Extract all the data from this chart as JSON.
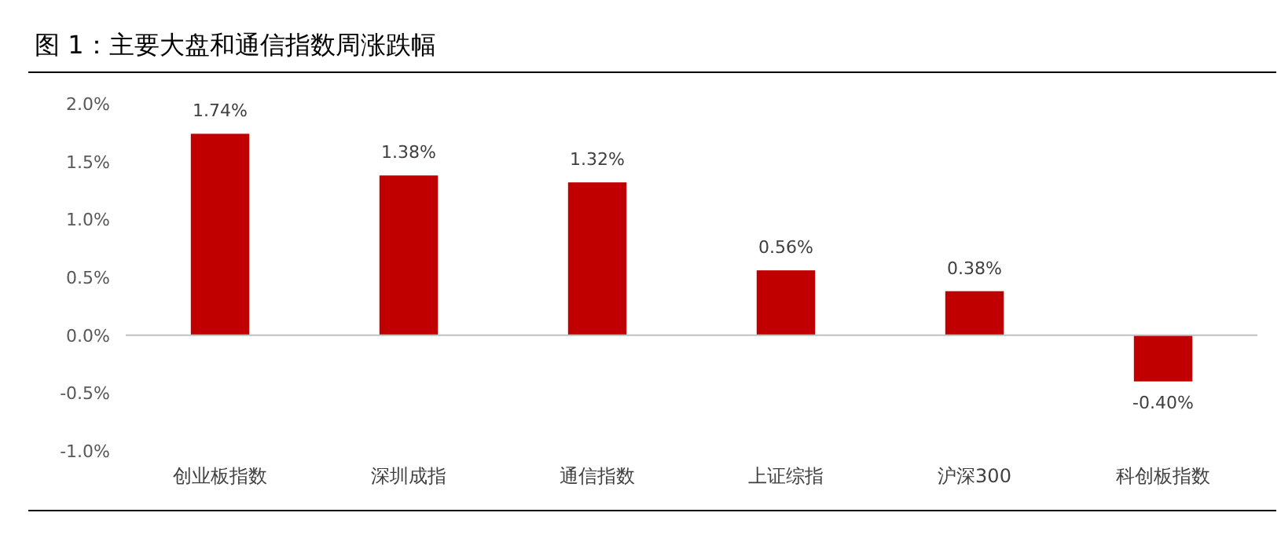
{
  "chart_data": {
    "type": "bar",
    "title": "图 1：主要大盘和通信指数周涨跌幅",
    "categories": [
      "创业板指数",
      "深圳成指",
      "通信指数",
      "上证综指",
      "沪深300",
      "科创板指数"
    ],
    "values": [
      1.74,
      1.38,
      1.32,
      0.56,
      0.38,
      -0.4
    ],
    "value_labels": [
      "1.74%",
      "1.38%",
      "1.32%",
      "0.56%",
      "0.38%",
      "-0.40%"
    ],
    "color": "#c00000",
    "ylim": [
      -1.0,
      2.0
    ],
    "yticks": [
      {
        "value": -1.0,
        "label": "-1.0%"
      },
      {
        "value": -0.5,
        "label": "-0.5%"
      },
      {
        "value": 0.0,
        "label": "0.0%"
      },
      {
        "value": 0.5,
        "label": "0.5%"
      },
      {
        "value": 1.0,
        "label": "1.0%"
      },
      {
        "value": 1.5,
        "label": "1.5%"
      },
      {
        "value": 2.0,
        "label": "2.0%"
      }
    ]
  }
}
